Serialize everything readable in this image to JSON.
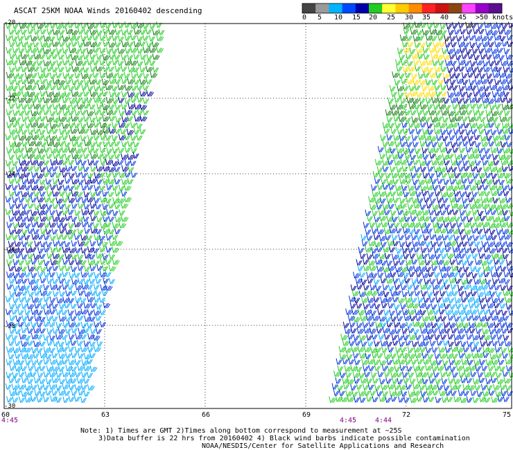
{
  "title": "ASCAT 25KM NOAA Winds 20160402 descending",
  "legend": {
    "labels": [
      "0",
      "5",
      "10",
      "15",
      "20",
      "25",
      "30",
      "35",
      "40",
      "45",
      ">50 knots"
    ],
    "colors": [
      "#444444",
      "#9a9a9a",
      "#00b4ff",
      "#0048ff",
      "#0000aa",
      "#22cc22",
      "#ffff33",
      "#ffcc00",
      "#ff8c00",
      "#ff2222",
      "#cc1111",
      "#8b4513",
      "#ff44ff",
      "#9900cc",
      "#5b0d8f"
    ]
  },
  "axes": {
    "lat_labels": [
      "-20",
      "-22",
      "-24",
      "-26",
      "-28",
      "-30"
    ],
    "lon_labels": [
      "60",
      "63",
      "66",
      "69",
      "72",
      "75"
    ]
  },
  "times": {
    "left": "4:45",
    "right_a": "4:45",
    "right_b": "4:44"
  },
  "notes": {
    "line1": "Note: 1) Times are GMT 2)Times along bottom correspond to measurement at ~25S",
    "line2": "3)Data buffer is 22 hrs from 20160402 4) Black wind barbs indicate possible contamination",
    "line3": "NOAA/NESDIS/Center for Satellite Applications and Research"
  },
  "swath_colors": {
    "green": "#22cc22",
    "dark_green": "#147a14",
    "blue": "#0033dd",
    "dark_blue": "#000099",
    "cyan": "#00aaff",
    "yellow": "#ffdd00",
    "black": "#111111"
  }
}
